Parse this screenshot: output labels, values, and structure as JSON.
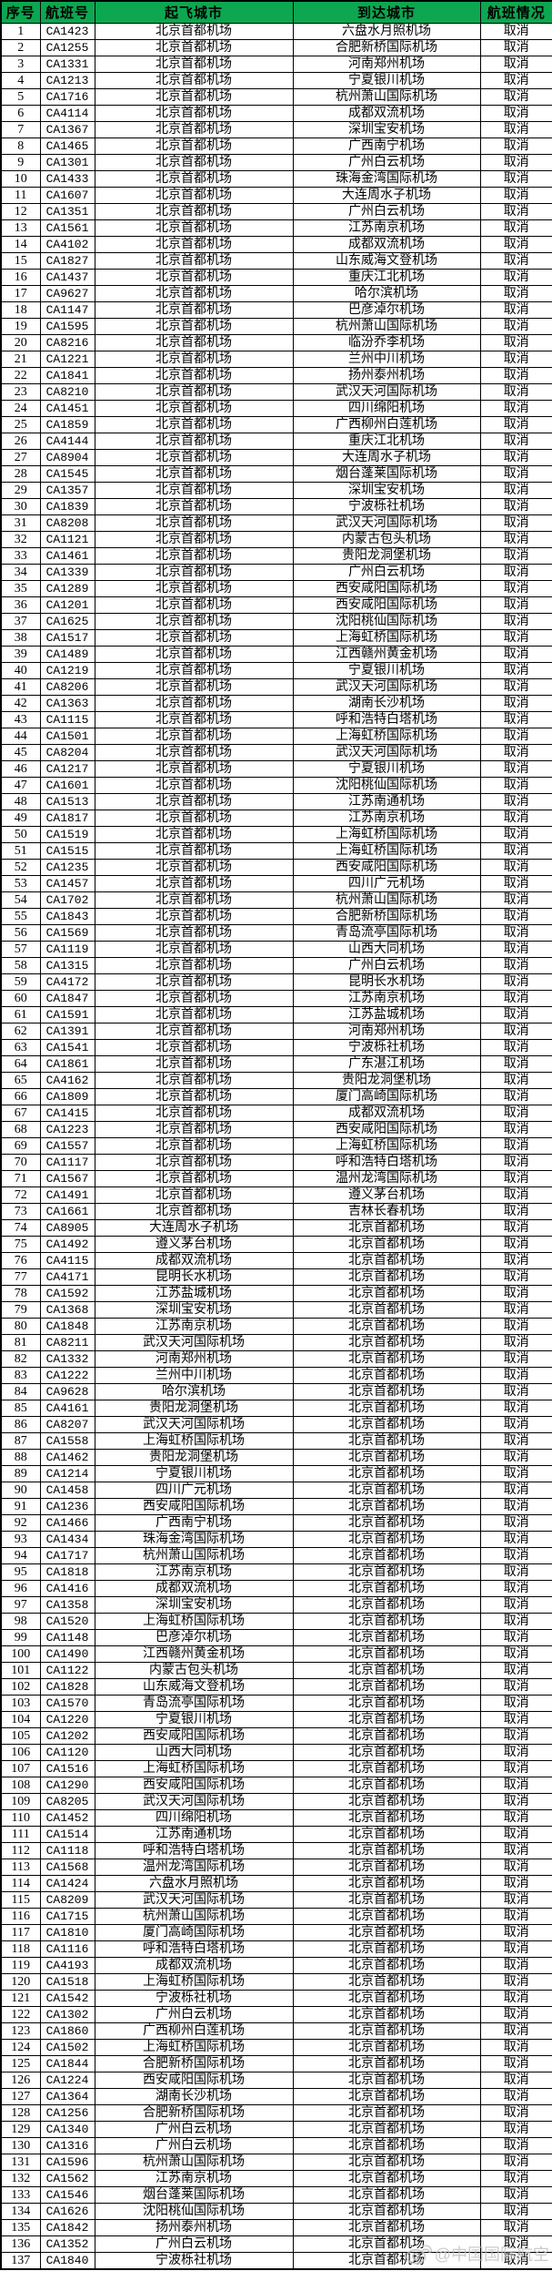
{
  "table": {
    "columns": [
      "序号",
      "航班号",
      "起飞城市",
      "到达城市",
      "航班情况"
    ],
    "header_bg_color": "#0CA750",
    "header_text_color": "#000000",
    "rows": [
      [
        "1",
        "CA1423",
        "北京首都机场",
        "六盘水月照机场",
        "取消"
      ],
      [
        "2",
        "CA1255",
        "北京首都机场",
        "合肥新桥国际机场",
        "取消"
      ],
      [
        "3",
        "CA1331",
        "北京首都机场",
        "河南郑州机场",
        "取消"
      ],
      [
        "4",
        "CA1213",
        "北京首都机场",
        "宁夏银川机场",
        "取消"
      ],
      [
        "5",
        "CA1716",
        "北京首都机场",
        "杭州萧山国际机场",
        "取消"
      ],
      [
        "6",
        "CA4114",
        "北京首都机场",
        "成都双流机场",
        "取消"
      ],
      [
        "7",
        "CA1367",
        "北京首都机场",
        "深圳宝安机场",
        "取消"
      ],
      [
        "8",
        "CA1465",
        "北京首都机场",
        "广西南宁机场",
        "取消"
      ],
      [
        "9",
        "CA1301",
        "北京首都机场",
        "广州白云机场",
        "取消"
      ],
      [
        "10",
        "CA1433",
        "北京首都机场",
        "珠海金湾国际机场",
        "取消"
      ],
      [
        "11",
        "CA1607",
        "北京首都机场",
        "大连周水子机场",
        "取消"
      ],
      [
        "12",
        "CA1351",
        "北京首都机场",
        "广州白云机场",
        "取消"
      ],
      [
        "13",
        "CA1561",
        "北京首都机场",
        "江苏南京机场",
        "取消"
      ],
      [
        "14",
        "CA4102",
        "北京首都机场",
        "成都双流机场",
        "取消"
      ],
      [
        "15",
        "CA1827",
        "北京首都机场",
        "山东威海文登机场",
        "取消"
      ],
      [
        "16",
        "CA1437",
        "北京首都机场",
        "重庆江北机场",
        "取消"
      ],
      [
        "17",
        "CA9627",
        "北京首都机场",
        "哈尔滨机场",
        "取消"
      ],
      [
        "18",
        "CA1147",
        "北京首都机场",
        "巴彦淖尔机场",
        "取消"
      ],
      [
        "19",
        "CA1595",
        "北京首都机场",
        "杭州萧山国际机场",
        "取消"
      ],
      [
        "20",
        "CA8216",
        "北京首都机场",
        "临汾乔李机场",
        "取消"
      ],
      [
        "21",
        "CA1221",
        "北京首都机场",
        "兰州中川机场",
        "取消"
      ],
      [
        "22",
        "CA1841",
        "北京首都机场",
        "扬州泰州机场",
        "取消"
      ],
      [
        "23",
        "CA8210",
        "北京首都机场",
        "武汉天河国际机场",
        "取消"
      ],
      [
        "24",
        "CA1451",
        "北京首都机场",
        "四川绵阳机场",
        "取消"
      ],
      [
        "25",
        "CA1859",
        "北京首都机场",
        "广西柳州白莲机场",
        "取消"
      ],
      [
        "26",
        "CA4144",
        "北京首都机场",
        "重庆江北机场",
        "取消"
      ],
      [
        "27",
        "CA8904",
        "北京首都机场",
        "大连周水子机场",
        "取消"
      ],
      [
        "28",
        "CA1545",
        "北京首都机场",
        "烟台蓬莱国际机场",
        "取消"
      ],
      [
        "29",
        "CA1357",
        "北京首都机场",
        "深圳宝安机场",
        "取消"
      ],
      [
        "30",
        "CA1839",
        "北京首都机场",
        "宁波栎社机场",
        "取消"
      ],
      [
        "31",
        "CA8208",
        "北京首都机场",
        "武汉天河国际机场",
        "取消"
      ],
      [
        "32",
        "CA1121",
        "北京首都机场",
        "内蒙古包头机场",
        "取消"
      ],
      [
        "33",
        "CA1461",
        "北京首都机场",
        "贵阳龙洞堡机场",
        "取消"
      ],
      [
        "34",
        "CA1339",
        "北京首都机场",
        "广州白云机场",
        "取消"
      ],
      [
        "35",
        "CA1289",
        "北京首都机场",
        "西安咸阳国际机场",
        "取消"
      ],
      [
        "36",
        "CA1201",
        "北京首都机场",
        "西安咸阳国际机场",
        "取消"
      ],
      [
        "37",
        "CA1625",
        "北京首都机场",
        "沈阳桃仙国际机场",
        "取消"
      ],
      [
        "38",
        "CA1517",
        "北京首都机场",
        "上海虹桥国际机场",
        "取消"
      ],
      [
        "39",
        "CA1489",
        "北京首都机场",
        "江西赣州黄金机场",
        "取消"
      ],
      [
        "40",
        "CA1219",
        "北京首都机场",
        "宁夏银川机场",
        "取消"
      ],
      [
        "41",
        "CA8206",
        "北京首都机场",
        "武汉天河国际机场",
        "取消"
      ],
      [
        "42",
        "CA1363",
        "北京首都机场",
        "湖南长沙机场",
        "取消"
      ],
      [
        "43",
        "CA1115",
        "北京首都机场",
        "呼和浩特白塔机场",
        "取消"
      ],
      [
        "44",
        "CA1501",
        "北京首都机场",
        "上海虹桥国际机场",
        "取消"
      ],
      [
        "45",
        "CA8204",
        "北京首都机场",
        "武汉天河国际机场",
        "取消"
      ],
      [
        "46",
        "CA1217",
        "北京首都机场",
        "宁夏银川机场",
        "取消"
      ],
      [
        "47",
        "CA1601",
        "北京首都机场",
        "沈阳桃仙国际机场",
        "取消"
      ],
      [
        "48",
        "CA1513",
        "北京首都机场",
        "江苏南通机场",
        "取消"
      ],
      [
        "49",
        "CA1817",
        "北京首都机场",
        "江苏南京机场",
        "取消"
      ],
      [
        "50",
        "CA1519",
        "北京首都机场",
        "上海虹桥国际机场",
        "取消"
      ],
      [
        "51",
        "CA1515",
        "北京首都机场",
        "上海虹桥国际机场",
        "取消"
      ],
      [
        "52",
        "CA1235",
        "北京首都机场",
        "西安咸阳国际机场",
        "取消"
      ],
      [
        "53",
        "CA1457",
        "北京首都机场",
        "四川广元机场",
        "取消"
      ],
      [
        "54",
        "CA1702",
        "北京首都机场",
        "杭州萧山国际机场",
        "取消"
      ],
      [
        "55",
        "CA1843",
        "北京首都机场",
        "合肥新桥国际机场",
        "取消"
      ],
      [
        "56",
        "CA1569",
        "北京首都机场",
        "青岛流亭国际机场",
        "取消"
      ],
      [
        "57",
        "CA1119",
        "北京首都机场",
        "山西大同机场",
        "取消"
      ],
      [
        "58",
        "CA1315",
        "北京首都机场",
        "广州白云机场",
        "取消"
      ],
      [
        "59",
        "CA4172",
        "北京首都机场",
        "昆明长水机场",
        "取消"
      ],
      [
        "60",
        "CA1847",
        "北京首都机场",
        "江苏南京机场",
        "取消"
      ],
      [
        "61",
        "CA1591",
        "北京首都机场",
        "江苏盐城机场",
        "取消"
      ],
      [
        "62",
        "CA1391",
        "北京首都机场",
        "河南郑州机场",
        "取消"
      ],
      [
        "63",
        "CA1541",
        "北京首都机场",
        "宁波栎社机场",
        "取消"
      ],
      [
        "64",
        "CA1861",
        "北京首都机场",
        "广东湛江机场",
        "取消"
      ],
      [
        "65",
        "CA4162",
        "北京首都机场",
        "贵阳龙洞堡机场",
        "取消"
      ],
      [
        "66",
        "CA1809",
        "北京首都机场",
        "厦门高崎国际机场",
        "取消"
      ],
      [
        "67",
        "CA1415",
        "北京首都机场",
        "成都双流机场",
        "取消"
      ],
      [
        "68",
        "CA1223",
        "北京首都机场",
        "西安咸阳国际机场",
        "取消"
      ],
      [
        "69",
        "CA1557",
        "北京首都机场",
        "上海虹桥国际机场",
        "取消"
      ],
      [
        "70",
        "CA1117",
        "北京首都机场",
        "呼和浩特白塔机场",
        "取消"
      ],
      [
        "71",
        "CA1567",
        "北京首都机场",
        "温州龙湾国际机场",
        "取消"
      ],
      [
        "72",
        "CA1491",
        "北京首都机场",
        "遵义茅台机场",
        "取消"
      ],
      [
        "73",
        "CA1661",
        "北京首都机场",
        "吉林长春机场",
        "取消"
      ],
      [
        "74",
        "CA8905",
        "大连周水子机场",
        "北京首都机场",
        "取消"
      ],
      [
        "75",
        "CA1492",
        "遵义茅台机场",
        "北京首都机场",
        "取消"
      ],
      [
        "76",
        "CA4115",
        "成都双流机场",
        "北京首都机场",
        "取消"
      ],
      [
        "77",
        "CA4171",
        "昆明长水机场",
        "北京首都机场",
        "取消"
      ],
      [
        "78",
        "CA1592",
        "江苏盐城机场",
        "北京首都机场",
        "取消"
      ],
      [
        "79",
        "CA1368",
        "深圳宝安机场",
        "北京首都机场",
        "取消"
      ],
      [
        "80",
        "CA1848",
        "江苏南京机场",
        "北京首都机场",
        "取消"
      ],
      [
        "81",
        "CA8211",
        "武汉天河国际机场",
        "北京首都机场",
        "取消"
      ],
      [
        "82",
        "CA1332",
        "河南郑州机场",
        "北京首都机场",
        "取消"
      ],
      [
        "83",
        "CA1222",
        "兰州中川机场",
        "北京首都机场",
        "取消"
      ],
      [
        "84",
        "CA9628",
        "哈尔滨机场",
        "北京首都机场",
        "取消"
      ],
      [
        "85",
        "CA4161",
        "贵阳龙洞堡机场",
        "北京首都机场",
        "取消"
      ],
      [
        "86",
        "CA8207",
        "武汉天河国际机场",
        "北京首都机场",
        "取消"
      ],
      [
        "87",
        "CA1558",
        "上海虹桥国际机场",
        "北京首都机场",
        "取消"
      ],
      [
        "88",
        "CA1462",
        "贵阳龙洞堡机场",
        "北京首都机场",
        "取消"
      ],
      [
        "89",
        "CA1214",
        "宁夏银川机场",
        "北京首都机场",
        "取消"
      ],
      [
        "90",
        "CA1458",
        "四川广元机场",
        "北京首都机场",
        "取消"
      ],
      [
        "91",
        "CA1236",
        "西安咸阳国际机场",
        "北京首都机场",
        "取消"
      ],
      [
        "92",
        "CA1466",
        "广西南宁机场",
        "北京首都机场",
        "取消"
      ],
      [
        "93",
        "CA1434",
        "珠海金湾国际机场",
        "北京首都机场",
        "取消"
      ],
      [
        "94",
        "CA1717",
        "杭州萧山国际机场",
        "北京首都机场",
        "取消"
      ],
      [
        "95",
        "CA1818",
        "江苏南京机场",
        "北京首都机场",
        "取消"
      ],
      [
        "96",
        "CA1416",
        "成都双流机场",
        "北京首都机场",
        "取消"
      ],
      [
        "97",
        "CA1358",
        "深圳宝安机场",
        "北京首都机场",
        "取消"
      ],
      [
        "98",
        "CA1520",
        "上海虹桥国际机场",
        "北京首都机场",
        "取消"
      ],
      [
        "99",
        "CA1148",
        "巴彦淖尔机场",
        "北京首都机场",
        "取消"
      ],
      [
        "100",
        "CA1490",
        "江西赣州黄金机场",
        "北京首都机场",
        "取消"
      ],
      [
        "101",
        "CA1122",
        "内蒙古包头机场",
        "北京首都机场",
        "取消"
      ],
      [
        "102",
        "CA1828",
        "山东威海文登机场",
        "北京首都机场",
        "取消"
      ],
      [
        "103",
        "CA1570",
        "青岛流亭国际机场",
        "北京首都机场",
        "取消"
      ],
      [
        "104",
        "CA1220",
        "宁夏银川机场",
        "北京首都机场",
        "取消"
      ],
      [
        "105",
        "CA1202",
        "西安咸阳国际机场",
        "北京首都机场",
        "取消"
      ],
      [
        "106",
        "CA1120",
        "山西大同机场",
        "北京首都机场",
        "取消"
      ],
      [
        "107",
        "CA1516",
        "上海虹桥国际机场",
        "北京首都机场",
        "取消"
      ],
      [
        "108",
        "CA1290",
        "西安咸阳国际机场",
        "北京首都机场",
        "取消"
      ],
      [
        "109",
        "CA8205",
        "武汉天河国际机场",
        "北京首都机场",
        "取消"
      ],
      [
        "110",
        "CA1452",
        "四川绵阳机场",
        "北京首都机场",
        "取消"
      ],
      [
        "111",
        "CA1514",
        "江苏南通机场",
        "北京首都机场",
        "取消"
      ],
      [
        "112",
        "CA1118",
        "呼和浩特白塔机场",
        "北京首都机场",
        "取消"
      ],
      [
        "113",
        "CA1568",
        "温州龙湾国际机场",
        "北京首都机场",
        "取消"
      ],
      [
        "114",
        "CA1424",
        "六盘水月照机场",
        "北京首都机场",
        "取消"
      ],
      [
        "115",
        "CA8209",
        "武汉天河国际机场",
        "北京首都机场",
        "取消"
      ],
      [
        "116",
        "CA1715",
        "杭州萧山国际机场",
        "北京首都机场",
        "取消"
      ],
      [
        "117",
        "CA1810",
        "厦门高崎国际机场",
        "北京首都机场",
        "取消"
      ],
      [
        "118",
        "CA1116",
        "呼和浩特白塔机场",
        "北京首都机场",
        "取消"
      ],
      [
        "119",
        "CA4193",
        "成都双流机场",
        "北京首都机场",
        "取消"
      ],
      [
        "120",
        "CA1518",
        "上海虹桥国际机场",
        "北京首都机场",
        "取消"
      ],
      [
        "121",
        "CA1542",
        "宁波栎社机场",
        "北京首都机场",
        "取消"
      ],
      [
        "122",
        "CA1302",
        "广州白云机场",
        "北京首都机场",
        "取消"
      ],
      [
        "123",
        "CA1860",
        "广西柳州白莲机场",
        "北京首都机场",
        "取消"
      ],
      [
        "124",
        "CA1502",
        "上海虹桥国际机场",
        "北京首都机场",
        "取消"
      ],
      [
        "125",
        "CA1844",
        "合肥新桥国际机场",
        "北京首都机场",
        "取消"
      ],
      [
        "126",
        "CA1224",
        "西安咸阳国际机场",
        "北京首都机场",
        "取消"
      ],
      [
        "127",
        "CA1364",
        "湖南长沙机场",
        "北京首都机场",
        "取消"
      ],
      [
        "128",
        "CA1256",
        "合肥新桥国际机场",
        "北京首都机场",
        "取消"
      ],
      [
        "129",
        "CA1340",
        "广州白云机场",
        "北京首都机场",
        "取消"
      ],
      [
        "130",
        "CA1316",
        "广州白云机场",
        "北京首都机场",
        "取消"
      ],
      [
        "131",
        "CA1596",
        "杭州萧山国际机场",
        "北京首都机场",
        "取消"
      ],
      [
        "132",
        "CA1562",
        "江苏南京机场",
        "北京首都机场",
        "取消"
      ],
      [
        "133",
        "CA1546",
        "烟台蓬莱国际机场",
        "北京首都机场",
        "取消"
      ],
      [
        "134",
        "CA1626",
        "沈阳桃仙国际机场",
        "北京首都机场",
        "取消"
      ],
      [
        "135",
        "CA1842",
        "扬州泰州机场",
        "北京首都机场",
        "取消"
      ],
      [
        "136",
        "CA1352",
        "广州白云机场",
        "北京首都机场",
        "取消"
      ],
      [
        "137",
        "CA1840",
        "宁波栎社机场",
        "北京首都机场",
        "取消"
      ]
    ]
  },
  "watermark": {
    "text": "@中国国际航空",
    "icon": "weibo-logo-icon",
    "color": "#bfbfbf"
  }
}
